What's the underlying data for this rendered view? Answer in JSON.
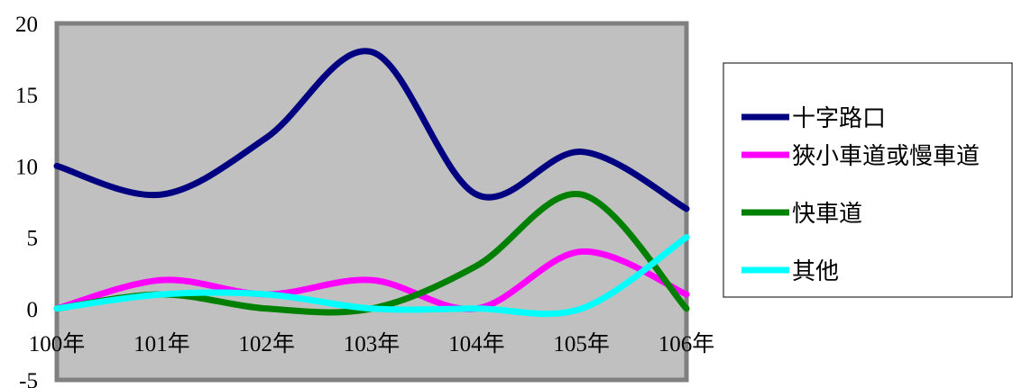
{
  "chart_data": {
    "type": "line",
    "title": "",
    "xlabel": "",
    "ylabel": "",
    "categories": [
      "100年",
      "101年",
      "102年",
      "103年",
      "104年",
      "105年",
      "106年"
    ],
    "y_ticks": [
      "20",
      "15",
      "10",
      "5",
      "0",
      "-5"
    ],
    "ylim": [
      -5,
      20
    ],
    "grid": false,
    "legend_position": "right",
    "series": [
      {
        "name": "十字路口",
        "color": "#000080",
        "values": [
          10,
          8,
          12,
          18,
          8,
          11,
          7
        ]
      },
      {
        "name": "狹小車道或慢車道",
        "color": "#ff00ff",
        "values": [
          0,
          2,
          1,
          2,
          0,
          4,
          1
        ]
      },
      {
        "name": "快車道",
        "color": "#008000",
        "values": [
          0,
          1,
          0,
          0,
          3,
          8,
          0
        ]
      },
      {
        "name": "其他",
        "color": "#00ffff",
        "values": [
          0,
          1,
          1,
          0,
          0,
          0,
          5
        ]
      }
    ],
    "plot_background": "#c0c0c0",
    "plot_border": "#808080"
  }
}
